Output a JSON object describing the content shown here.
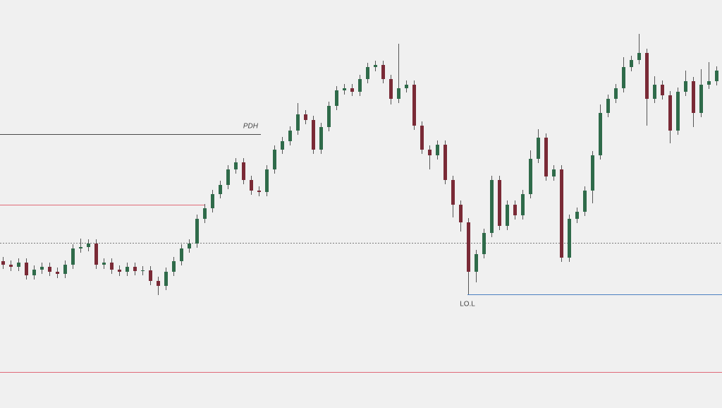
{
  "chart_data": {
    "type": "candlestick",
    "ylim": [
      0,
      578
    ],
    "up_color": "#2f6b4a",
    "down_color": "#7a2a36",
    "open": [
      208,
      203,
      200,
      206,
      188,
      196,
      200,
      193,
      190,
      203,
      226,
      228,
      233,
      203,
      206,
      196,
      193,
      200,
      194,
      195,
      180,
      173,
      193,
      208,
      226,
      233,
      268,
      283,
      303,
      316,
      338,
      348,
      323,
      308,
      306,
      338,
      366,
      378,
      393,
      416,
      408,
      366,
      398,
      428,
      450,
      453,
      448,
      466,
      483,
      486,
      466,
      438,
      453,
      458,
      400,
      366,
      358,
      373,
      323,
      288,
      263,
      193,
      218,
      248,
      323,
      258,
      288,
      273,
      303,
      353,
      383,
      328,
      338,
      213,
      268,
      278,
      308,
      358,
      418,
      438,
      453,
      483,
      493,
      503,
      438,
      458,
      443,
      393,
      448,
      463,
      418,
      458,
      463
    ],
    "high": [
      214,
      209,
      212,
      212,
      202,
      206,
      206,
      199,
      209,
      232,
      240,
      239,
      239,
      212,
      212,
      202,
      206,
      206,
      201,
      201,
      186,
      199,
      214,
      232,
      239,
      274,
      289,
      309,
      322,
      344,
      354,
      354,
      329,
      314,
      344,
      372,
      384,
      399,
      432,
      422,
      414,
      404,
      434,
      456,
      459,
      459,
      472,
      489,
      492,
      492,
      472,
      516,
      464,
      464,
      406,
      372,
      379,
      379,
      329,
      294,
      269,
      224,
      254,
      329,
      329,
      294,
      294,
      309,
      365,
      395,
      389,
      344,
      344,
      274,
      284,
      314,
      364,
      430,
      444,
      459,
      497,
      499,
      530,
      509,
      470,
      464,
      449,
      454,
      478,
      469,
      480,
      490,
      484
    ],
    "low": [
      197,
      194,
      194,
      182,
      182,
      190,
      187,
      184,
      184,
      197,
      220,
      222,
      197,
      197,
      190,
      187,
      187,
      188,
      188,
      174,
      160,
      167,
      187,
      202,
      220,
      227,
      262,
      277,
      297,
      310,
      332,
      317,
      302,
      300,
      300,
      332,
      360,
      372,
      387,
      402,
      360,
      360,
      392,
      422,
      444,
      442,
      442,
      460,
      477,
      460,
      430,
      432,
      447,
      394,
      360,
      338,
      352,
      317,
      270,
      250,
      161,
      178,
      212,
      242,
      252,
      252,
      267,
      267,
      297,
      347,
      322,
      322,
      207,
      207,
      262,
      272,
      290,
      352,
      412,
      432,
      447,
      477,
      487,
      400,
      432,
      437,
      375,
      387,
      442,
      398,
      412,
      452,
      457
    ],
    "close": [
      203,
      200,
      206,
      188,
      196,
      200,
      193,
      190,
      203,
      226,
      228,
      233,
      203,
      206,
      196,
      193,
      200,
      194,
      195,
      180,
      173,
      193,
      208,
      226,
      233,
      268,
      283,
      303,
      316,
      338,
      348,
      323,
      308,
      306,
      338,
      366,
      378,
      393,
      416,
      408,
      366,
      398,
      428,
      450,
      453,
      448,
      466,
      483,
      486,
      466,
      438,
      453,
      458,
      400,
      366,
      358,
      373,
      323,
      288,
      263,
      193,
      218,
      248,
      323,
      258,
      288,
      273,
      303,
      353,
      383,
      328,
      338,
      213,
      268,
      278,
      308,
      358,
      418,
      438,
      453,
      483,
      493,
      503,
      438,
      458,
      443,
      393,
      448,
      463,
      418,
      458,
      463,
      478
    ],
    "levels": [
      {
        "value": 388,
        "color": "#4a4a4a",
        "label": "PDH"
      },
      {
        "value": 288,
        "color": "#e06a78"
      },
      {
        "value": 234,
        "color": "#7a7a7a",
        "dashed": true
      },
      {
        "value": 161,
        "color": "#4a7fc1",
        "label": "LO.L"
      },
      {
        "value": 51,
        "color": "#e06a78"
      }
    ]
  }
}
